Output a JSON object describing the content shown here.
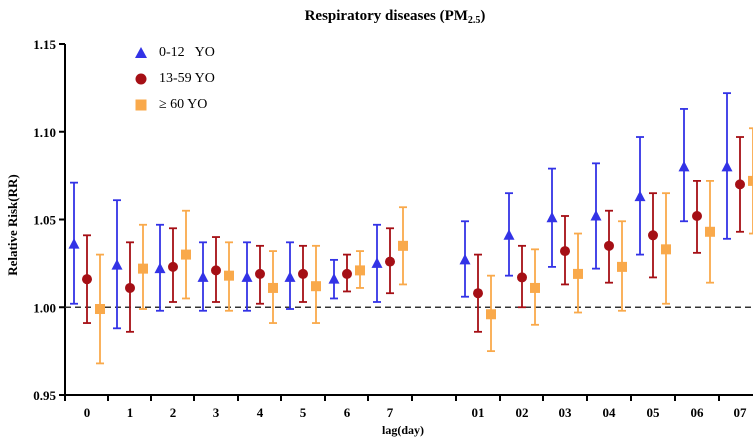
{
  "chart_data": {
    "type": "scatter",
    "title_main": "Respiratory diseases (PM",
    "title_sub": "2.5",
    "title_close": ")",
    "xlabel": "lag(day)",
    "ylabel": "Relative Risk(RR)",
    "ylim": [
      0.95,
      1.15
    ],
    "yticks": [
      "0.95",
      "1.00",
      "1.05",
      "1.10",
      "1.15"
    ],
    "categories": [
      "0",
      "1",
      "2",
      "3",
      "4",
      "5",
      "6",
      "7",
      "01",
      "02",
      "03",
      "04",
      "05",
      "06",
      "07"
    ],
    "reference_line": 1.0,
    "legend_placement": "top-left",
    "grid": false,
    "series": [
      {
        "name": "0-12   YO",
        "marker": "triangle",
        "color": "#3333e6",
        "values": [
          1.036,
          1.024,
          1.022,
          1.017,
          1.017,
          1.017,
          1.016,
          1.025,
          1.027,
          1.041,
          1.051,
          1.052,
          1.063,
          1.08,
          1.08
        ],
        "lower": [
          1.002,
          0.988,
          0.998,
          0.998,
          0.998,
          0.999,
          1.005,
          1.003,
          1.006,
          1.018,
          1.023,
          1.022,
          1.03,
          1.049,
          1.039
        ],
        "upper": [
          1.071,
          1.061,
          1.047,
          1.037,
          1.037,
          1.037,
          1.027,
          1.047,
          1.049,
          1.065,
          1.079,
          1.082,
          1.097,
          1.113,
          1.122
        ]
      },
      {
        "name": "13-59 YO",
        "marker": "circle",
        "color": "#a50f15",
        "values": [
          1.016,
          1.011,
          1.023,
          1.021,
          1.019,
          1.019,
          1.019,
          1.026,
          1.008,
          1.017,
          1.032,
          1.035,
          1.041,
          1.052,
          1.07
        ],
        "lower": [
          0.991,
          0.986,
          1.003,
          1.003,
          1.002,
          1.003,
          1.009,
          1.008,
          0.986,
          1.0,
          1.013,
          1.014,
          1.017,
          1.031,
          1.043
        ],
        "upper": [
          1.041,
          1.037,
          1.045,
          1.04,
          1.035,
          1.035,
          1.03,
          1.045,
          1.03,
          1.035,
          1.052,
          1.055,
          1.065,
          1.072,
          1.097
        ]
      },
      {
        "name": "≥ 60 YO",
        "marker": "square",
        "color": "#f9a94b",
        "values": [
          0.999,
          1.022,
          1.03,
          1.018,
          1.011,
          1.012,
          1.021,
          1.035,
          0.996,
          1.011,
          1.019,
          1.023,
          1.033,
          1.043,
          1.072
        ],
        "lower": [
          0.968,
          0.999,
          1.005,
          0.998,
          0.991,
          0.991,
          1.011,
          1.013,
          0.975,
          0.99,
          0.997,
          0.998,
          1.002,
          1.014,
          1.042
        ],
        "upper": [
          1.03,
          1.047,
          1.055,
          1.037,
          1.032,
          1.035,
          1.032,
          1.057,
          1.018,
          1.033,
          1.042,
          1.049,
          1.065,
          1.072,
          1.102
        ]
      }
    ]
  }
}
